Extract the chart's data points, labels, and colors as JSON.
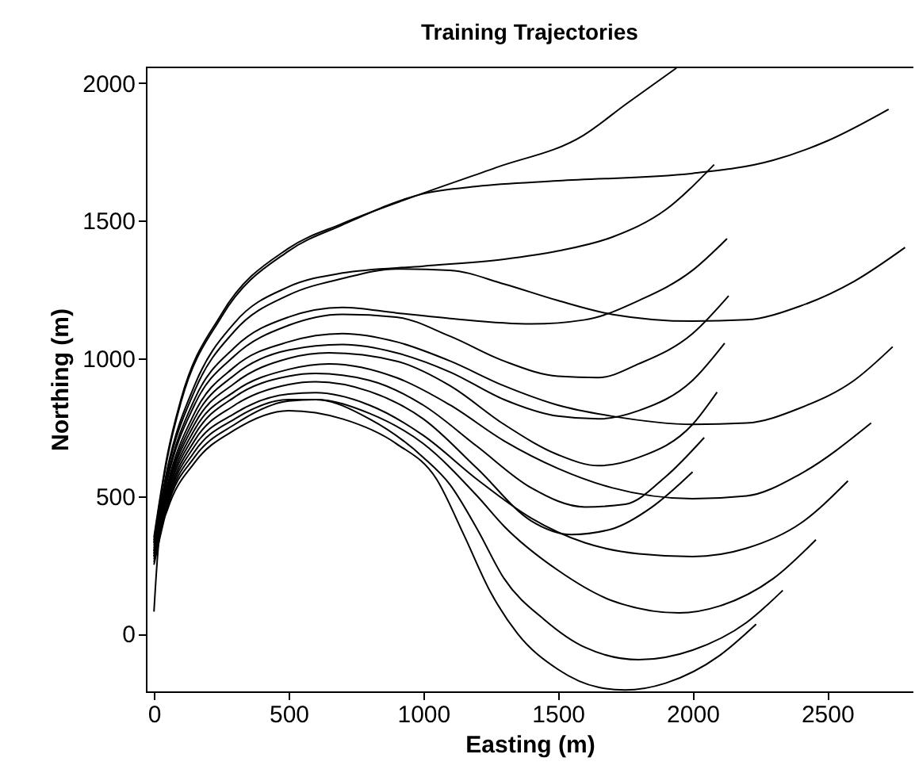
{
  "chart_data": {
    "type": "line",
    "title": "Training Trajectories",
    "xlabel": "Easting (m)",
    "ylabel": "Northing (m)",
    "xlim": [
      -30,
      2820
    ],
    "ylim": [
      -210,
      2060
    ],
    "xticks": [
      0,
      500,
      1000,
      1500,
      2000,
      2500
    ],
    "yticks": [
      0,
      500,
      1000,
      1500,
      2000
    ],
    "grid": false,
    "legend": false,
    "marker": "none",
    "line_style": "solid",
    "series": [
      {
        "color": "#000000",
        "x": [
          0,
          50,
          100,
          250,
          500,
          700,
          1000,
          1270,
          1594,
          1756,
          1940
        ],
        "values": [
          350,
          650,
          850,
          1160,
          1400,
          1490,
          1600,
          1693,
          1810,
          1926,
          2055
        ]
      },
      {
        "color": "#000000",
        "x": [
          0,
          50,
          100,
          250,
          500,
          700,
          1000,
          1200,
          1500,
          2000,
          2300,
          2500,
          2728
        ],
        "values": [
          340,
          640,
          840,
          1150,
          1390,
          1485,
          1598,
          1625,
          1645,
          1672,
          1720,
          1790,
          1905
        ]
      },
      {
        "color": "#000000",
        "x": [
          0,
          50,
          150,
          300,
          500,
          700,
          1000,
          1300,
          1500,
          1700,
          1900,
          2080
        ],
        "values": [
          330,
          600,
          900,
          1130,
          1260,
          1310,
          1335,
          1360,
          1390,
          1440,
          1540,
          1704
        ]
      },
      {
        "color": "#000000",
        "x": [
          0,
          50,
          150,
          300,
          500,
          700,
          900,
          1100,
          1300,
          1500,
          1700,
          2000,
          2200,
          2400,
          2600,
          2789
        ],
        "values": [
          330,
          590,
          880,
          1100,
          1230,
          1290,
          1325,
          1320,
          1270,
          1210,
          1160,
          1135,
          1140,
          1190,
          1280,
          1403
        ]
      },
      {
        "color": "#000000",
        "x": [
          0,
          50,
          150,
          300,
          500,
          700,
          900,
          1100,
          1400,
          1600,
          1800,
          2000,
          2128
        ],
        "values": [
          320,
          570,
          850,
          1040,
          1150,
          1185,
          1165,
          1145,
          1125,
          1140,
          1210,
          1320,
          1435
        ]
      },
      {
        "color": "#000000",
        "x": [
          0,
          50,
          150,
          300,
          500,
          700,
          900,
          1100,
          1300,
          1500,
          1650,
          1800,
          2000,
          2134
        ],
        "values": [
          310,
          560,
          830,
          1010,
          1120,
          1160,
          1150,
          1080,
          990,
          935,
          930,
          980,
          1090,
          1227
        ]
      },
      {
        "color": "#000000",
        "x": [
          0,
          50,
          150,
          300,
          500,
          700,
          900,
          1100,
          1300,
          1500,
          1700,
          2000,
          2200,
          2400,
          2600,
          2743
        ],
        "values": [
          300,
          540,
          800,
          970,
          1060,
          1090,
          1060,
          990,
          900,
          830,
          790,
          760,
          765,
          820,
          920,
          1042
        ]
      },
      {
        "color": "#000000",
        "x": [
          0,
          50,
          150,
          300,
          500,
          700,
          900,
          1100,
          1300,
          1500,
          1650,
          1800,
          2000,
          2119
        ],
        "values": [
          300,
          530,
          780,
          940,
          1030,
          1050,
          1020,
          950,
          850,
          790,
          780,
          810,
          920,
          1055
        ]
      },
      {
        "color": "#000000",
        "x": [
          0,
          50,
          150,
          300,
          500,
          650,
          900,
          1100,
          1300,
          1500,
          1650,
          1800,
          2000,
          2091
        ],
        "values": [
          290,
          520,
          760,
          910,
          1000,
          1020,
          990,
          900,
          760,
          650,
          610,
          640,
          760,
          877
        ]
      },
      {
        "color": "#000000",
        "x": [
          0,
          50,
          150,
          300,
          500,
          650,
          900,
          1100,
          1300,
          1500,
          1700,
          2000,
          2200,
          2400,
          2663
        ],
        "values": [
          290,
          510,
          740,
          880,
          960,
          980,
          930,
          830,
          700,
          600,
          530,
          490,
          500,
          580,
          765
        ]
      },
      {
        "color": "#000000",
        "x": [
          0,
          50,
          150,
          300,
          500,
          600,
          800,
          1000,
          1200,
          1400,
          1600,
          1750,
          1900,
          2043
        ],
        "values": [
          280,
          500,
          720,
          860,
          935,
          945,
          920,
          830,
          680,
          530,
          460,
          470,
          570,
          712
        ]
      },
      {
        "color": "#000000",
        "x": [
          0,
          50,
          150,
          300,
          500,
          600,
          800,
          1000,
          1200,
          1400,
          1550,
          1700,
          1850,
          2000
        ],
        "values": [
          280,
          490,
          700,
          830,
          905,
          915,
          880,
          780,
          600,
          410,
          360,
          380,
          460,
          587
        ]
      },
      {
        "color": "#000000",
        "x": [
          0,
          50,
          150,
          300,
          500,
          600,
          800,
          1000,
          1200,
          1400,
          1600,
          1800,
          2000,
          2200,
          2400,
          2577
        ],
        "values": [
          270,
          480,
          680,
          800,
          870,
          875,
          830,
          720,
          560,
          420,
          330,
          290,
          280,
          310,
          400,
          555
        ]
      },
      {
        "color": "#000000",
        "x": [
          0,
          50,
          150,
          300,
          500,
          600,
          800,
          1000,
          1200,
          1300,
          1500,
          1700,
          1950,
          2100,
          2300,
          2458
        ],
        "values": [
          260,
          470,
          660,
          780,
          850,
          850,
          800,
          690,
          500,
          390,
          230,
          120,
          75,
          100,
          200,
          341
        ]
      },
      {
        "color": "#000000",
        "x": [
          0,
          50,
          150,
          300,
          500,
          600,
          800,
          1000,
          1100,
          1200,
          1300,
          1450,
          1600,
          1800,
          2000,
          2200,
          2335
        ],
        "values": [
          250,
          460,
          640,
          760,
          845,
          850,
          780,
          640,
          540,
          380,
          200,
          50,
          -50,
          -95,
          -60,
          40,
          157
        ]
      },
      {
        "color": "#000000",
        "x": [
          0,
          20,
          50,
          150,
          300,
          500,
          700,
          900,
          1050,
          1150,
          1250,
          1350,
          1500,
          1650,
          1750,
          1900,
          2100,
          2236
        ],
        "values": [
          80,
          350,
          450,
          620,
          740,
          810,
          780,
          690,
          560,
          360,
          150,
          0,
          -130,
          -195,
          -205,
          -180,
          -80,
          34
        ]
      }
    ]
  }
}
